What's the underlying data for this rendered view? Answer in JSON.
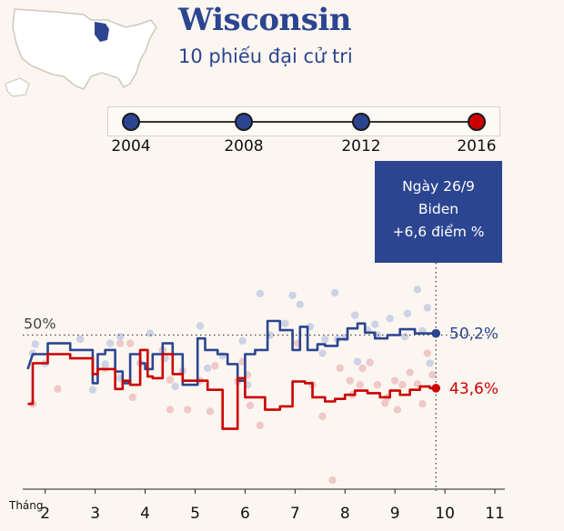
{
  "header": {
    "title": "Wisconsin",
    "subtitle": "10 phiếu đại cử tri"
  },
  "timeline": {
    "items": [
      {
        "year": "2004",
        "color": "#2c4591"
      },
      {
        "year": "2008",
        "color": "#2c4591"
      },
      {
        "year": "2012",
        "color": "#2c4591"
      },
      {
        "year": "2016",
        "color": "#cc0000"
      }
    ]
  },
  "callout": {
    "line1": "Ngày 26/9",
    "line2": "Biden",
    "line3": "+6,6 điểm %"
  },
  "chart_data": {
    "type": "line",
    "xlabel": "Tháng",
    "x_ticks": [
      "2",
      "3",
      "4",
      "5",
      "6",
      "7",
      "8",
      "9",
      "10",
      "11"
    ],
    "xlim": [
      1.55,
      11.2
    ],
    "ylim": [
      29,
      63
    ],
    "reference_line": {
      "label": "50%",
      "value": 50
    },
    "colors": {
      "biden": "#2c4591",
      "trump": "#cc0000",
      "biden_light": "#cdd3e6",
      "trump_light": "#f0c8c8"
    },
    "series": [
      {
        "key": "biden",
        "end_label": "50,2%",
        "points": [
          [
            1.65,
            45.9
          ],
          [
            1.75,
            47.7
          ],
          [
            2.05,
            47.7
          ],
          [
            2.05,
            49.0
          ],
          [
            2.5,
            49.0
          ],
          [
            2.5,
            48.2
          ],
          [
            2.95,
            48.2
          ],
          [
            2.95,
            44.2
          ],
          [
            3.05,
            44.2
          ],
          [
            3.05,
            47.7
          ],
          [
            3.2,
            47.7
          ],
          [
            3.2,
            48.2
          ],
          [
            3.4,
            48.2
          ],
          [
            3.4,
            45.6
          ],
          [
            3.55,
            45.6
          ],
          [
            3.55,
            44.2
          ],
          [
            3.7,
            44.2
          ],
          [
            3.7,
            47.7
          ],
          [
            3.9,
            47.7
          ],
          [
            3.9,
            46.6
          ],
          [
            4.0,
            46.6
          ],
          [
            4.0,
            45.9
          ],
          [
            4.15,
            45.9
          ],
          [
            4.15,
            47.7
          ],
          [
            4.35,
            47.7
          ],
          [
            4.35,
            49.0
          ],
          [
            4.55,
            49.0
          ],
          [
            4.55,
            47.7
          ],
          [
            4.75,
            47.7
          ],
          [
            4.75,
            44.0
          ],
          [
            5.05,
            44.0
          ],
          [
            5.05,
            49.6
          ],
          [
            5.2,
            49.6
          ],
          [
            5.2,
            48.2
          ],
          [
            5.45,
            48.2
          ],
          [
            5.45,
            47.7
          ],
          [
            5.65,
            47.7
          ],
          [
            5.65,
            46.5
          ],
          [
            5.85,
            46.5
          ],
          [
            5.85,
            44.5
          ],
          [
            6.0,
            44.5
          ],
          [
            6.0,
            47.7
          ],
          [
            6.2,
            47.7
          ],
          [
            6.2,
            48.2
          ],
          [
            6.45,
            48.2
          ],
          [
            6.45,
            51.7
          ],
          [
            6.7,
            51.7
          ],
          [
            6.7,
            50.6
          ],
          [
            6.95,
            50.6
          ],
          [
            6.95,
            48.2
          ],
          [
            7.1,
            48.2
          ],
          [
            7.1,
            51.0
          ],
          [
            7.25,
            51.0
          ],
          [
            7.25,
            48.2
          ],
          [
            7.45,
            48.2
          ],
          [
            7.45,
            48.9
          ],
          [
            7.6,
            48.9
          ],
          [
            7.6,
            48.7
          ],
          [
            7.85,
            48.7
          ],
          [
            7.85,
            49.5
          ],
          [
            8.05,
            49.5
          ],
          [
            8.05,
            50.8
          ],
          [
            8.25,
            50.8
          ],
          [
            8.25,
            51.4
          ],
          [
            8.4,
            51.4
          ],
          [
            8.4,
            50.3
          ],
          [
            8.6,
            50.3
          ],
          [
            8.6,
            49.6
          ],
          [
            8.85,
            49.6
          ],
          [
            8.85,
            50.0
          ],
          [
            9.1,
            50.0
          ],
          [
            9.1,
            50.7
          ],
          [
            9.4,
            50.7
          ],
          [
            9.4,
            50.2
          ],
          [
            9.82,
            50.2
          ]
        ]
      },
      {
        "key": "trump",
        "end_label": "43,6%",
        "points": [
          [
            1.65,
            41.7
          ],
          [
            1.75,
            41.7
          ],
          [
            1.75,
            46.6
          ],
          [
            2.05,
            46.6
          ],
          [
            2.05,
            47.7
          ],
          [
            2.5,
            47.7
          ],
          [
            2.5,
            47.2
          ],
          [
            2.95,
            47.2
          ],
          [
            2.95,
            45.3
          ],
          [
            3.05,
            45.3
          ],
          [
            3.05,
            45.9
          ],
          [
            3.4,
            45.9
          ],
          [
            3.4,
            43.5
          ],
          [
            3.55,
            43.5
          ],
          [
            3.55,
            44.5
          ],
          [
            3.7,
            44.5
          ],
          [
            3.7,
            44.0
          ],
          [
            3.9,
            44.0
          ],
          [
            3.9,
            48.2
          ],
          [
            4.05,
            48.2
          ],
          [
            4.05,
            45.0
          ],
          [
            4.15,
            45.0
          ],
          [
            4.15,
            44.8
          ],
          [
            4.35,
            44.8
          ],
          [
            4.35,
            47.7
          ],
          [
            4.55,
            47.7
          ],
          [
            4.55,
            45.3
          ],
          [
            4.75,
            45.3
          ],
          [
            4.75,
            44.5
          ],
          [
            5.25,
            44.5
          ],
          [
            5.25,
            43.4
          ],
          [
            5.55,
            43.4
          ],
          [
            5.55,
            38.7
          ],
          [
            5.85,
            38.7
          ],
          [
            5.85,
            44.8
          ],
          [
            6.0,
            44.8
          ],
          [
            6.0,
            42.5
          ],
          [
            6.4,
            42.5
          ],
          [
            6.4,
            41.0
          ],
          [
            6.7,
            41.0
          ],
          [
            6.7,
            41.4
          ],
          [
            6.95,
            41.4
          ],
          [
            6.95,
            44.4
          ],
          [
            7.2,
            44.4
          ],
          [
            7.2,
            44.2
          ],
          [
            7.35,
            44.2
          ],
          [
            7.35,
            42.5
          ],
          [
            7.6,
            42.5
          ],
          [
            7.6,
            42.0
          ],
          [
            7.8,
            42.0
          ],
          [
            7.8,
            42.3
          ],
          [
            8.0,
            42.3
          ],
          [
            8.0,
            42.8
          ],
          [
            8.2,
            42.8
          ],
          [
            8.2,
            43.3
          ],
          [
            8.45,
            43.3
          ],
          [
            8.45,
            43.0
          ],
          [
            8.7,
            43.0
          ],
          [
            8.7,
            42.5
          ],
          [
            8.9,
            42.5
          ],
          [
            8.9,
            43.3
          ],
          [
            9.1,
            43.3
          ],
          [
            9.1,
            42.8
          ],
          [
            9.3,
            42.8
          ],
          [
            9.3,
            43.4
          ],
          [
            9.5,
            43.4
          ],
          [
            9.5,
            43.8
          ],
          [
            9.7,
            43.8
          ],
          [
            9.7,
            43.6
          ],
          [
            9.82,
            43.6
          ]
        ]
      }
    ],
    "polls": {
      "biden": [
        [
          1.75,
          47.8
        ],
        [
          1.8,
          48.9
        ],
        [
          2.0,
          46.6
        ],
        [
          2.7,
          49.5
        ],
        [
          2.95,
          43.4
        ],
        [
          3.2,
          46.5
        ],
        [
          3.3,
          49.0
        ],
        [
          3.5,
          49.8
        ],
        [
          3.5,
          44.8
        ],
        [
          3.9,
          46.6
        ],
        [
          4.1,
          50.2
        ],
        [
          4.4,
          47.2
        ],
        [
          4.6,
          43.8
        ],
        [
          5.1,
          51.1
        ],
        [
          5.25,
          46.0
        ],
        [
          5.55,
          47.5
        ],
        [
          5.95,
          49.3
        ],
        [
          6.05,
          44.0
        ],
        [
          6.3,
          55.0
        ],
        [
          6.5,
          50.0
        ],
        [
          6.8,
          51.4
        ],
        [
          6.95,
          54.8
        ],
        [
          7.1,
          53.7
        ],
        [
          7.3,
          51.0
        ],
        [
          7.55,
          47.8
        ],
        [
          7.6,
          49.5
        ],
        [
          7.8,
          55.1
        ],
        [
          7.85,
          49.5
        ],
        [
          8.0,
          49.7
        ],
        [
          8.2,
          52.4
        ],
        [
          8.25,
          46.8
        ],
        [
          8.45,
          50.6
        ],
        [
          8.6,
          51.3
        ],
        [
          8.65,
          50.0
        ],
        [
          8.9,
          52.0
        ],
        [
          9.2,
          49.8
        ],
        [
          9.25,
          52.6
        ],
        [
          9.45,
          55.5
        ],
        [
          9.55,
          50.5
        ],
        [
          9.65,
          53.3
        ],
        [
          9.7,
          46.6
        ]
      ],
      "trump": [
        [
          1.75,
          41.7
        ],
        [
          2.25,
          43.5
        ],
        [
          3.2,
          46.0
        ],
        [
          3.5,
          49.0
        ],
        [
          3.7,
          49.0
        ],
        [
          4.35,
          48.2
        ],
        [
          4.5,
          44.6
        ],
        [
          4.75,
          45.7
        ],
        [
          5.1,
          44.5
        ],
        [
          5.4,
          46.3
        ],
        [
          5.85,
          44.4
        ],
        [
          5.95,
          46.8
        ],
        [
          6.05,
          45.2
        ],
        [
          6.3,
          39.1
        ],
        [
          7.05,
          49.0
        ],
        [
          7.35,
          44.0
        ],
        [
          7.55,
          40.2
        ],
        [
          7.75,
          32.5
        ],
        [
          7.9,
          46.0
        ],
        [
          8.1,
          44.5
        ],
        [
          8.15,
          42.8
        ],
        [
          8.3,
          44.0
        ],
        [
          8.35,
          46.0
        ],
        [
          8.5,
          46.7
        ],
        [
          8.65,
          44.0
        ],
        [
          8.8,
          41.8
        ],
        [
          8.85,
          42.5
        ],
        [
          9.0,
          44.5
        ],
        [
          9.05,
          41.0
        ],
        [
          9.15,
          44.0
        ],
        [
          9.3,
          45.5
        ],
        [
          9.45,
          44.1
        ],
        [
          9.55,
          41.7
        ],
        [
          9.65,
          47.8
        ],
        [
          9.75,
          45.2
        ],
        [
          3.75,
          42.5
        ],
        [
          4.5,
          41.0
        ],
        [
          5.3,
          40.8
        ],
        [
          6.1,
          41.5
        ],
        [
          4.85,
          41.0
        ]
      ]
    }
  }
}
